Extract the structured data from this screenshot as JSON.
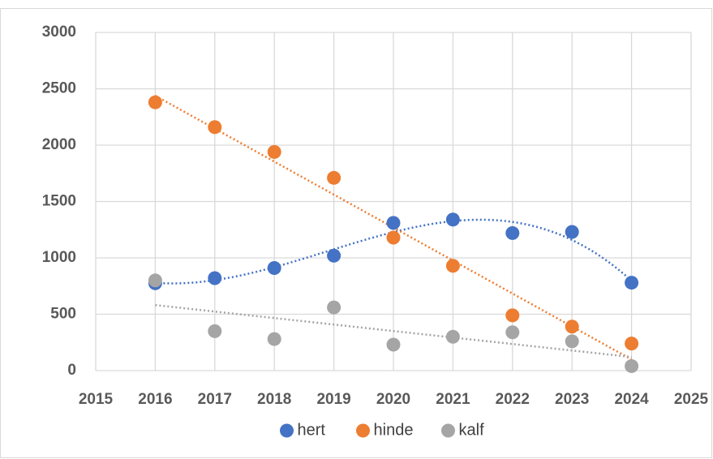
{
  "chart_data": {
    "type": "scatter",
    "x": [
      2016,
      2017,
      2018,
      2019,
      2020,
      2021,
      2022,
      2023,
      2024
    ],
    "series": [
      {
        "name": "hert",
        "color": "#4472c4",
        "trendline": "polynomial",
        "trendline_order": 3,
        "values": [
          775,
          820,
          910,
          1020,
          1310,
          1340,
          1220,
          1230,
          780
        ]
      },
      {
        "name": "hinde",
        "color": "#ed7d31",
        "trendline": "linear",
        "trendline_order": 1,
        "values": [
          2380,
          2160,
          1940,
          1710,
          1180,
          930,
          490,
          390,
          240
        ]
      },
      {
        "name": "kalf",
        "color": "#a5a5a5",
        "trendline": "linear",
        "trendline_order": 1,
        "values": [
          800,
          350,
          280,
          560,
          230,
          300,
          340,
          260,
          40
        ]
      }
    ],
    "xlim": [
      2015,
      2025
    ],
    "xticks": [
      2015,
      2016,
      2017,
      2018,
      2019,
      2020,
      2021,
      2022,
      2023,
      2024,
      2025
    ],
    "ylim": [
      0,
      3000
    ],
    "yticks": [
      0,
      500,
      1000,
      1500,
      2000,
      2500,
      3000
    ],
    "grid": true,
    "legend": "bottom"
  }
}
